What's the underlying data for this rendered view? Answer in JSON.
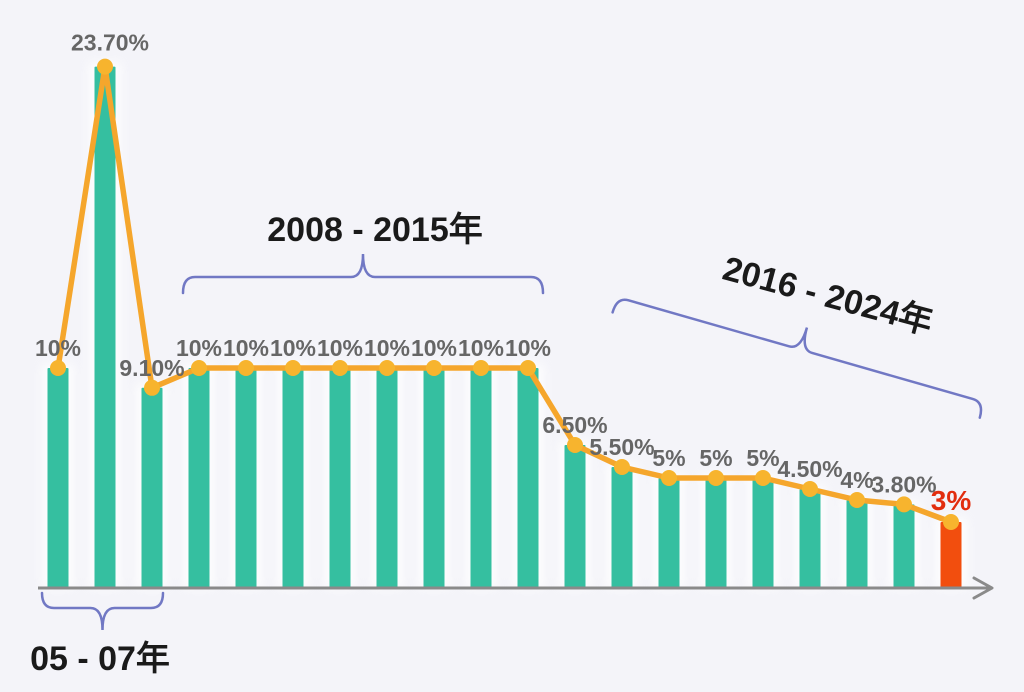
{
  "page": {
    "background_color": "#f4f4f9"
  },
  "chart_data": {
    "type": "bar",
    "line_overlay": true,
    "marker": "circle",
    "title": "",
    "xlabel": "",
    "ylabel": "",
    "ylim": [
      0,
      25
    ],
    "grid": false,
    "legend": false,
    "x_axis": {
      "visible": true,
      "arrow": true,
      "tick_labels": []
    },
    "values": [
      10,
      23.7,
      9.1,
      10,
      10,
      10,
      10,
      10,
      10,
      10,
      10,
      6.5,
      5.5,
      5,
      5,
      5,
      4.5,
      4,
      3.8,
      3
    ],
    "data_labels": [
      "10%",
      "23.70%",
      "9.10%",
      "10%",
      "10%",
      "10%",
      "10%",
      "10%",
      "10%",
      "10%",
      "10%",
      "6.50%",
      "5.50%",
      "5%",
      "5%",
      "5%",
      "4.50%",
      "4%",
      "3.80%",
      "3%"
    ],
    "highlight_index": 19,
    "annotations": [
      {
        "label": "05 - 07年",
        "range_indices": [
          0,
          2
        ],
        "brace_direction": "down",
        "rotation_deg": 0
      },
      {
        "label": "2008 - 2015年",
        "range_indices": [
          3,
          10
        ],
        "brace_direction": "up",
        "rotation_deg": 0
      },
      {
        "label": "2016 - 2024年",
        "range_indices": [
          12,
          19
        ],
        "brace_direction": "up",
        "rotation_deg": 16
      }
    ],
    "colors": {
      "bar": "#35bfa0",
      "bar_highlight": "#f24e0e",
      "line": "#f5a62c",
      "marker": "#f7b42e",
      "data_label": "#666666",
      "data_label_highlight": "#e22d0e",
      "annotation_text": "#1a1a1a",
      "brace": "#7178c4",
      "axis": "#8a8a8a",
      "bar_glow": "#ffffff"
    }
  }
}
